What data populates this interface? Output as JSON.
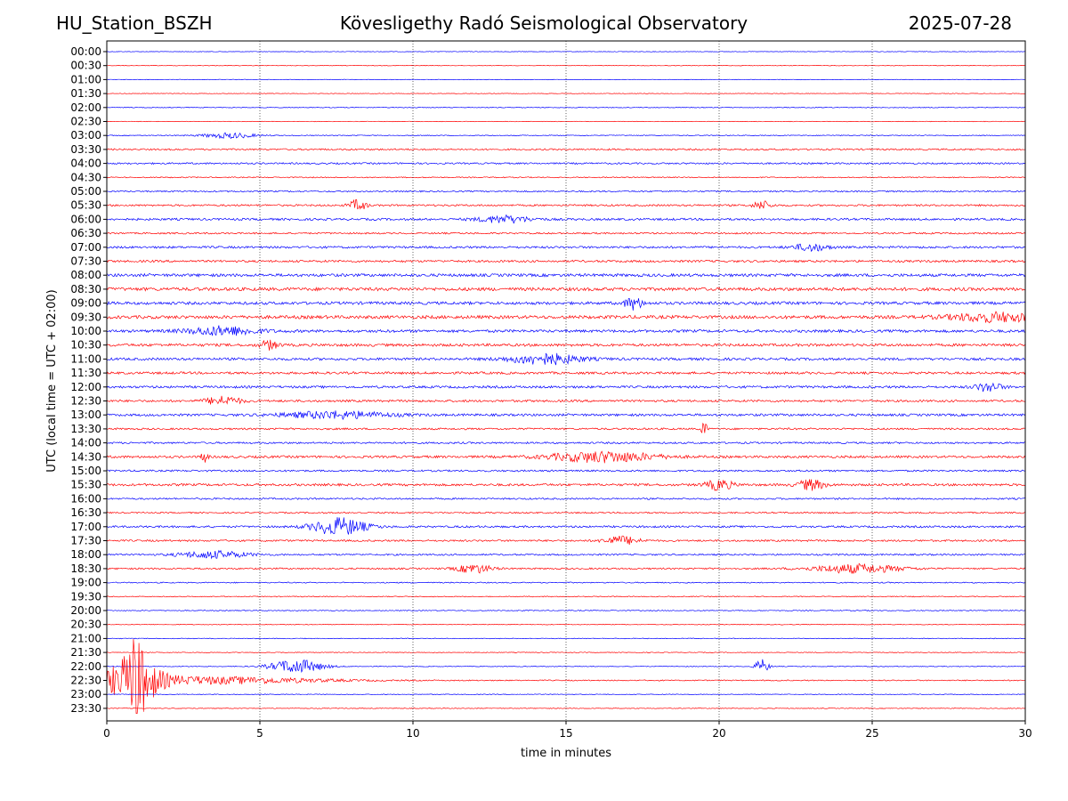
{
  "header": {
    "station": "HU_Station_BSZH",
    "observatory": "Kövesligethy Radó Seismological Observatory",
    "date": "2025-07-28"
  },
  "chart_data": {
    "type": "line",
    "title": "Kövesligethy Radó Seismological Observatory",
    "xlabel": "time in minutes",
    "ylabel": "UTC (local time = UTC + 02:00)",
    "xlim": [
      0,
      30
    ],
    "x_ticks": [
      0,
      5,
      10,
      15,
      20,
      25,
      30
    ],
    "grid_x": true,
    "grid_style": "dotted",
    "colors": [
      "#0000ff",
      "#ff0000"
    ],
    "rows": [
      "00:00",
      "00:30",
      "01:00",
      "01:30",
      "02:00",
      "02:30",
      "03:00",
      "03:30",
      "04:00",
      "04:30",
      "05:00",
      "05:30",
      "06:00",
      "06:30",
      "07:00",
      "07:30",
      "08:00",
      "08:30",
      "09:00",
      "09:30",
      "10:00",
      "10:30",
      "11:00",
      "11:30",
      "12:00",
      "12:30",
      "13:00",
      "13:30",
      "14:00",
      "14:30",
      "15:00",
      "15:30",
      "16:00",
      "16:30",
      "17:00",
      "17:30",
      "18:00",
      "18:30",
      "19:00",
      "19:30",
      "20:00",
      "20:30",
      "21:00",
      "21:30",
      "22:00",
      "22:30",
      "23:00",
      "23:30"
    ],
    "noise_level": [
      0.3,
      0.3,
      0.3,
      0.3,
      0.4,
      0.3,
      0.5,
      0.9,
      0.9,
      0.6,
      0.8,
      1.0,
      1.2,
      0.9,
      1.2,
      1.2,
      1.6,
      1.8,
      1.6,
      1.8,
      1.5,
      1.5,
      1.4,
      1.3,
      1.3,
      1.2,
      1.3,
      1.0,
      1.0,
      1.3,
      1.0,
      1.3,
      0.9,
      0.8,
      1.1,
      1.0,
      0.9,
      0.9,
      0.6,
      0.5,
      0.5,
      0.4,
      0.4,
      0.4,
      0.4,
      0.6,
      0.4,
      0.4
    ],
    "bursts": [
      {
        "row": "03:00",
        "t": 4.0,
        "amp": 3,
        "width": 0.6
      },
      {
        "row": "05:30",
        "t": 8.2,
        "amp": 6,
        "width": 0.2
      },
      {
        "row": "05:30",
        "t": 21.4,
        "amp": 5,
        "width": 0.2
      },
      {
        "row": "06:00",
        "t": 13.0,
        "amp": 4,
        "width": 0.6
      },
      {
        "row": "07:00",
        "t": 23.0,
        "amp": 4,
        "width": 0.4
      },
      {
        "row": "09:00",
        "t": 17.2,
        "amp": 7,
        "width": 0.2
      },
      {
        "row": "09:30",
        "t": 29.0,
        "amp": 5,
        "width": 1.0
      },
      {
        "row": "10:00",
        "t": 3.8,
        "amp": 5,
        "width": 0.8
      },
      {
        "row": "10:30",
        "t": 5.3,
        "amp": 5,
        "width": 0.2
      },
      {
        "row": "11:00",
        "t": 14.3,
        "amp": 6,
        "width": 0.8
      },
      {
        "row": "12:00",
        "t": 28.8,
        "amp": 5,
        "width": 0.3
      },
      {
        "row": "12:30",
        "t": 3.8,
        "amp": 5,
        "width": 0.4
      },
      {
        "row": "13:00",
        "t": 7.5,
        "amp": 4,
        "width": 1.2
      },
      {
        "row": "13:30",
        "t": 19.5,
        "amp": 12,
        "width": 0.06
      },
      {
        "row": "14:30",
        "t": 3.2,
        "amp": 12,
        "width": 0.06
      },
      {
        "row": "14:30",
        "t": 16.2,
        "amp": 6,
        "width": 1.2
      },
      {
        "row": "15:30",
        "t": 20.0,
        "amp": 6,
        "width": 0.3
      },
      {
        "row": "15:30",
        "t": 23.0,
        "amp": 6,
        "width": 0.3
      },
      {
        "row": "17:00",
        "t": 7.6,
        "amp": 10,
        "width": 0.6
      },
      {
        "row": "17:30",
        "t": 16.8,
        "amp": 5,
        "width": 0.4
      },
      {
        "row": "18:00",
        "t": 3.5,
        "amp": 4,
        "width": 0.8
      },
      {
        "row": "18:30",
        "t": 12.0,
        "amp": 5,
        "width": 0.4
      },
      {
        "row": "18:30",
        "t": 24.5,
        "amp": 5,
        "width": 1.0
      },
      {
        "row": "22:00",
        "t": 6.2,
        "amp": 8,
        "width": 0.6
      },
      {
        "row": "22:00",
        "t": 21.4,
        "amp": 8,
        "width": 0.15
      },
      {
        "row": "22:30",
        "t": 0.8,
        "amp": 28,
        "width": 0.5
      },
      {
        "row": "22:30",
        "t": 3.5,
        "amp": 4,
        "width": 2.5
      }
    ]
  }
}
